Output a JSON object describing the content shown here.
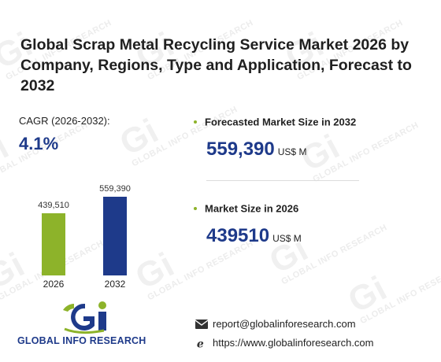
{
  "title": "Global Scrap Metal Recycling Service Market 2026 by Company, Regions, Type and Application, Forecast to 2032",
  "cagr": {
    "label": "CAGR (2026-2032):",
    "value": "4.1%"
  },
  "chart_data": {
    "type": "bar",
    "categories": [
      "2026",
      "2032"
    ],
    "values": [
      439510,
      559390
    ],
    "data_labels": [
      "439,510",
      "559,390"
    ],
    "colors": [
      "#8db32a",
      "#1e3a8a"
    ],
    "title": "",
    "xlabel": "",
    "ylabel": "",
    "grid": false
  },
  "metrics": {
    "forecast": {
      "label": "Forecasted Market Size in 2032",
      "value": "559,390",
      "unit": "US$ M"
    },
    "current": {
      "label": "Market Size in 2026",
      "value": "439510",
      "unit": "US$ M"
    }
  },
  "logo": {
    "text": "GLOBAL INFO RESEARCH"
  },
  "watermark_text": "GLOBAL INFO RESEARCH",
  "contact": {
    "email": "report@globalinforesearch.com",
    "website": "https://www.globalinforesearch.com"
  },
  "colors": {
    "accent_blue": "#1e3a8a",
    "accent_green": "#8db32a"
  }
}
